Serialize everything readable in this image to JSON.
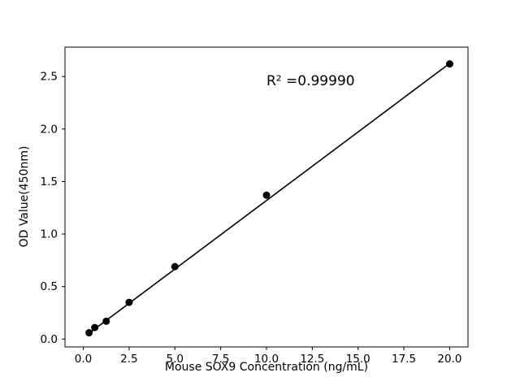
{
  "chart_data": {
    "type": "scatter",
    "title": "",
    "xlabel": "Mouse SOX9 Concentration (ng/mL)",
    "ylabel": "OD Value(450nm)",
    "x": [
      0.3125,
      0.625,
      1.25,
      2.5,
      5,
      10,
      20
    ],
    "y": [
      0.06,
      0.11,
      0.17,
      0.35,
      0.69,
      1.37,
      2.62
    ],
    "fit_line": {
      "x": [
        0.3125,
        20
      ],
      "y": [
        0.055,
        2.625
      ]
    },
    "annotation": {
      "text": "R² =0.99990"
    },
    "xlim": [
      -1,
      21
    ],
    "ylim": [
      -0.075,
      2.78
    ],
    "xticks": [
      0.0,
      2.5,
      5.0,
      7.5,
      10.0,
      12.5,
      15.0,
      17.5,
      20.0
    ],
    "yticks": [
      0.0,
      0.5,
      1.0,
      1.5,
      2.0,
      2.5
    ],
    "grid": false,
    "legend": null,
    "point_color": "#000000",
    "line_color": "#000000",
    "background_color": "#ffffff"
  }
}
